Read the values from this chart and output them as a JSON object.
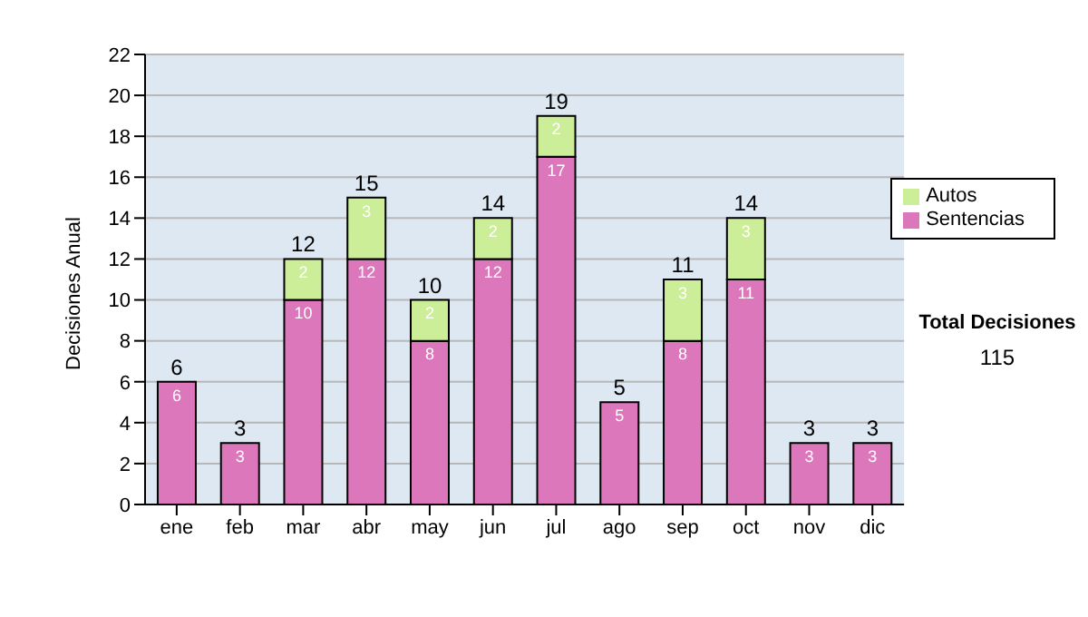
{
  "chart_data": {
    "type": "bar",
    "stacked": true,
    "ylabel": "Decisiones Anual",
    "categories": [
      "ene",
      "feb",
      "mar",
      "abr",
      "may",
      "jun",
      "jul",
      "ago",
      "sep",
      "oct",
      "nov",
      "dic"
    ],
    "series": [
      {
        "name": "Sentencias",
        "color": "#dd77bb",
        "values": [
          6,
          3,
          10,
          12,
          8,
          12,
          17,
          5,
          8,
          11,
          3,
          3
        ]
      },
      {
        "name": "Autos",
        "color": "#ccee99",
        "values": [
          null,
          null,
          2,
          3,
          2,
          2,
          2,
          null,
          3,
          3,
          null,
          null
        ]
      }
    ],
    "totals": [
      "6",
      "3",
      "12",
      "15",
      "10",
      "14",
      "19",
      "5",
      "11",
      "14",
      "3",
      "3"
    ],
    "data_labels": true,
    "ylim": [
      0,
      22
    ],
    "yticks": [
      0,
      2,
      4,
      6,
      8,
      10,
      12,
      14,
      16,
      18,
      20,
      22
    ],
    "grid": "y",
    "legend": "right",
    "annotations": [
      "Total Decisiones",
      "115"
    ]
  }
}
